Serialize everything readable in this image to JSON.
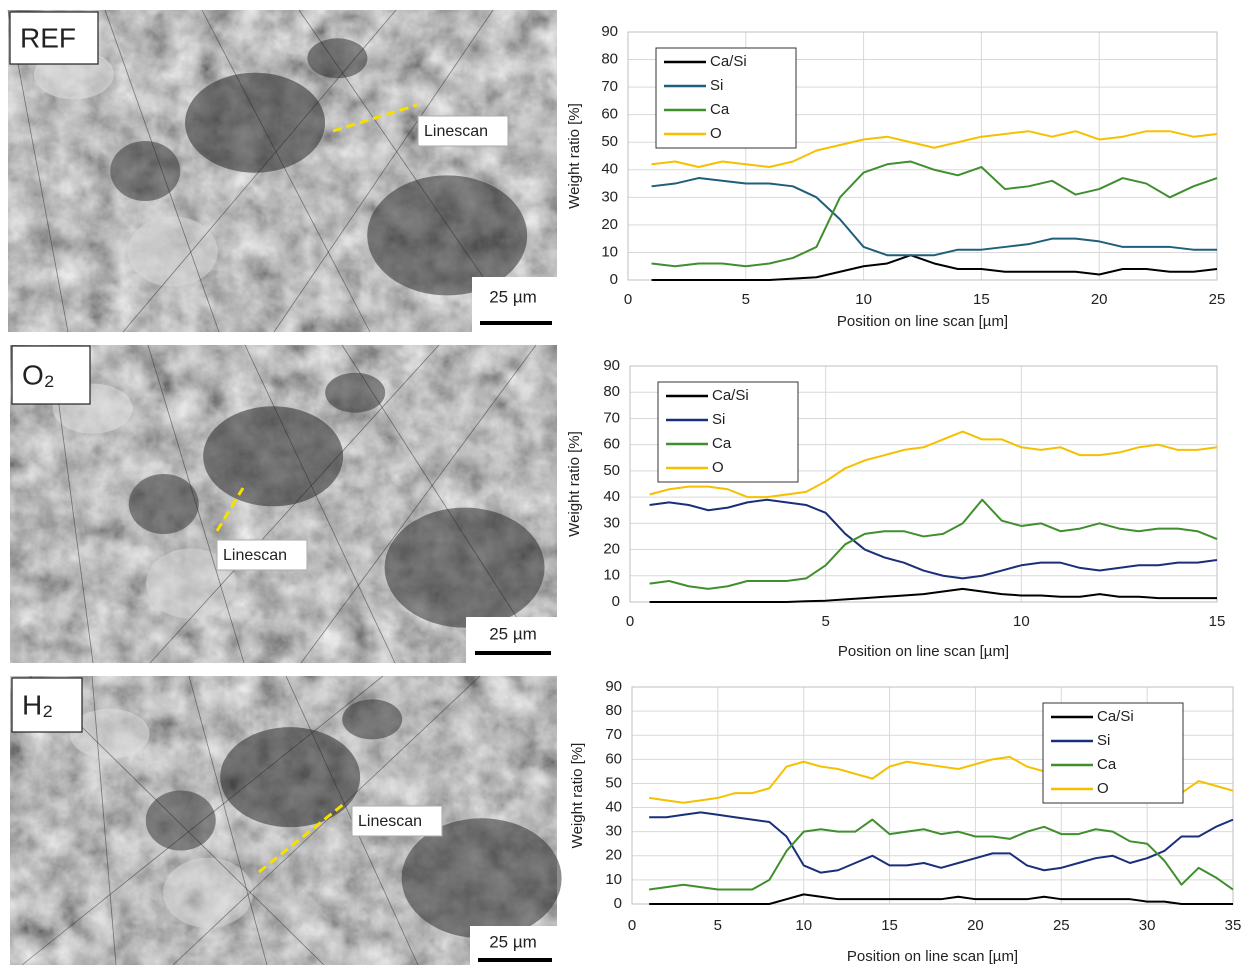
{
  "images": [
    {
      "label": "REF",
      "scale": "25 µm",
      "annotation": "Linescan"
    },
    {
      "label": "O₂",
      "scale": "25 µm",
      "annotation": "Linescan"
    },
    {
      "label": "H₂",
      "scale": "25 µm",
      "annotation": "Linescan"
    }
  ],
  "chart_data": [
    {
      "type": "line",
      "xlabel": "Position on line scan  [µm]",
      "ylabel": "Weight ratio [%]",
      "legend": "top-left",
      "grid": true,
      "xlim": [
        0,
        25
      ],
      "xticks": [
        0,
        5,
        10,
        15,
        20,
        25
      ],
      "ylim": [
        0,
        90
      ],
      "yticks": [
        0,
        10,
        20,
        30,
        40,
        50,
        60,
        70,
        80,
        90
      ],
      "x": [
        1,
        2,
        3,
        4,
        5,
        6,
        7,
        8,
        9,
        10,
        11,
        12,
        13,
        14,
        15,
        16,
        17,
        18,
        19,
        20,
        21,
        22,
        23,
        24,
        25
      ],
      "series": [
        {
          "name": "Ca/Si",
          "color": "#000000",
          "values": [
            0,
            0,
            0,
            0,
            0,
            0,
            0.5,
            1,
            3,
            5,
            6,
            9,
            6,
            4,
            4,
            3,
            3,
            3,
            3,
            2,
            4,
            4,
            3,
            3,
            4
          ]
        },
        {
          "name": "Si",
          "color": "#1f5f7a",
          "values": [
            34,
            35,
            37,
            36,
            35,
            35,
            34,
            30,
            22,
            12,
            9,
            9,
            9,
            11,
            11,
            12,
            13,
            15,
            15,
            14,
            12,
            12,
            12,
            11,
            11
          ]
        },
        {
          "name": "Ca",
          "color": "#3f8f2f",
          "values": [
            6,
            5,
            6,
            6,
            5,
            6,
            8,
            12,
            30,
            39,
            42,
            43,
            40,
            38,
            41,
            33,
            34,
            36,
            31,
            33,
            37,
            35,
            30,
            34,
            37
          ]
        },
        {
          "name": "O",
          "color": "#f5c000",
          "values": [
            42,
            43,
            41,
            43,
            42,
            41,
            43,
            47,
            49,
            51,
            52,
            50,
            48,
            50,
            52,
            53,
            54,
            52,
            54,
            51,
            52,
            54,
            54,
            52,
            53
          ]
        }
      ]
    },
    {
      "type": "line",
      "xlabel": "Position on line scan  [µm]",
      "ylabel": "Weight ratio [%]",
      "legend": "top-left",
      "grid": true,
      "xlim": [
        0,
        15
      ],
      "xticks": [
        0,
        5,
        10,
        15
      ],
      "ylim": [
        0,
        90
      ],
      "yticks": [
        0,
        10,
        20,
        30,
        40,
        50,
        60,
        70,
        80,
        90
      ],
      "x": [
        0.5,
        1,
        1.5,
        2,
        2.5,
        3,
        3.5,
        4,
        4.5,
        5,
        5.5,
        6,
        6.5,
        7,
        7.5,
        8,
        8.5,
        9,
        9.5,
        10,
        10.5,
        11,
        11.5,
        12,
        12.5,
        13,
        13.5,
        14,
        14.5,
        15
      ],
      "series": [
        {
          "name": "Ca/Si",
          "color": "#000000",
          "values": [
            0,
            0,
            0,
            0,
            0,
            0,
            0,
            0,
            0.3,
            0.5,
            1,
            1.5,
            2,
            2.5,
            3,
            4,
            5,
            4,
            3,
            2.5,
            2.5,
            2,
            2,
            3,
            2,
            2,
            1.5,
            1.5,
            1.5,
            1.5
          ]
        },
        {
          "name": "Si",
          "color": "#1a2f7a",
          "values": [
            37,
            38,
            37,
            35,
            36,
            38,
            39,
            38,
            37,
            34,
            26,
            20,
            17,
            15,
            12,
            10,
            9,
            10,
            12,
            14,
            15,
            15,
            13,
            12,
            13,
            14,
            14,
            15,
            15,
            16
          ]
        },
        {
          "name": "Ca",
          "color": "#3f8f2f",
          "values": [
            7,
            8,
            6,
            5,
            6,
            8,
            8,
            8,
            9,
            14,
            22,
            26,
            27,
            27,
            25,
            26,
            30,
            39,
            31,
            29,
            30,
            27,
            28,
            30,
            28,
            27,
            28,
            28,
            27,
            24
          ]
        },
        {
          "name": "O",
          "color": "#f5c000",
          "values": [
            41,
            43,
            44,
            44,
            43,
            40,
            40,
            41,
            42,
            46,
            51,
            54,
            56,
            58,
            59,
            62,
            65,
            62,
            62,
            59,
            58,
            59,
            56,
            56,
            57,
            59,
            60,
            58,
            58,
            59
          ]
        }
      ]
    },
    {
      "type": "line",
      "xlabel": "Position on line scan  [µm]",
      "ylabel": "Weight ratio [%]",
      "legend": "top-right",
      "grid": true,
      "xlim": [
        0,
        35
      ],
      "xticks": [
        0,
        5,
        10,
        15,
        20,
        25,
        30,
        35
      ],
      "ylim": [
        0,
        90
      ],
      "yticks": [
        0,
        10,
        20,
        30,
        40,
        50,
        60,
        70,
        80,
        90
      ],
      "x": [
        1,
        2,
        3,
        4,
        5,
        6,
        7,
        8,
        9,
        10,
        11,
        12,
        13,
        14,
        15,
        16,
        17,
        18,
        19,
        20,
        21,
        22,
        23,
        24,
        25,
        26,
        27,
        28,
        29,
        30,
        31,
        32,
        33,
        34,
        35
      ],
      "series": [
        {
          "name": "Ca/Si",
          "color": "#000000",
          "values": [
            0,
            0,
            0,
            0,
            0,
            0,
            0,
            0,
            2,
            4,
            3,
            2,
            2,
            2,
            2,
            2,
            2,
            2,
            3,
            2,
            2,
            2,
            2,
            3,
            2,
            2,
            2,
            2,
            2,
            1,
            1,
            0,
            0,
            0,
            0
          ]
        },
        {
          "name": "Si",
          "color": "#1a2f7a",
          "values": [
            36,
            36,
            37,
            38,
            37,
            36,
            35,
            34,
            28,
            16,
            13,
            14,
            17,
            20,
            16,
            16,
            17,
            15,
            17,
            19,
            21,
            21,
            16,
            14,
            15,
            17,
            19,
            20,
            17,
            19,
            22,
            28,
            28,
            32,
            35
          ]
        },
        {
          "name": "Ca",
          "color": "#3f8f2f",
          "values": [
            6,
            7,
            8,
            7,
            6,
            6,
            6,
            10,
            22,
            30,
            31,
            30,
            30,
            35,
            29,
            30,
            31,
            29,
            30,
            28,
            28,
            27,
            30,
            32,
            29,
            29,
            31,
            30,
            26,
            25,
            18,
            8,
            15,
            11,
            6
          ]
        },
        {
          "name": "O",
          "color": "#f5c000",
          "values": [
            44,
            43,
            42,
            43,
            44,
            46,
            46,
            48,
            57,
            59,
            57,
            56,
            54,
            52,
            57,
            59,
            58,
            57,
            56,
            58,
            60,
            61,
            57,
            55,
            54,
            52,
            53,
            51,
            50,
            48,
            47,
            46,
            51,
            49,
            47
          ]
        }
      ]
    }
  ]
}
